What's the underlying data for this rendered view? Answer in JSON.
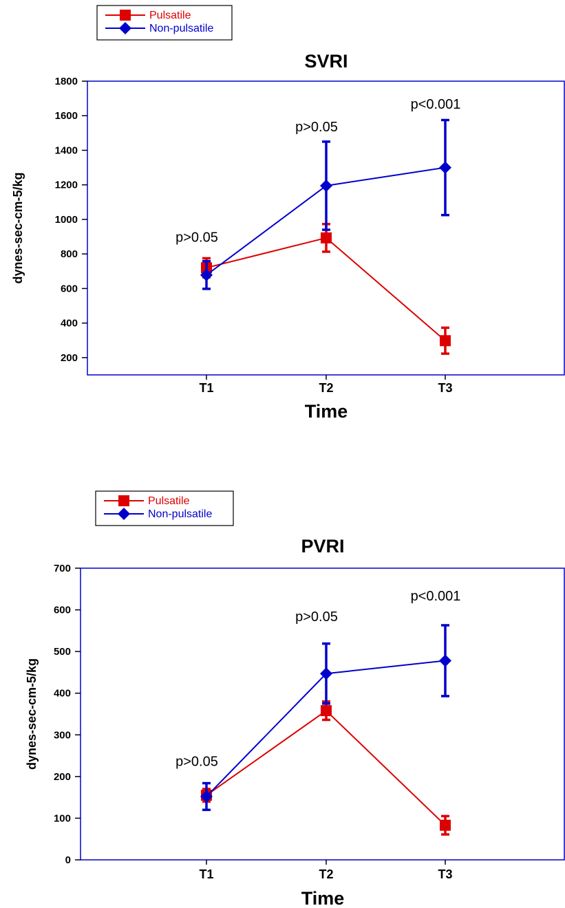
{
  "colors": {
    "pulsatile": "#dd0000",
    "non_pulsatile": "#0000cc",
    "frame": "#0000cc"
  },
  "chart_data": [
    {
      "type": "line",
      "title": "SVRI",
      "xlabel": "Time",
      "ylabel": "dynes-sec-cm-5/kg",
      "categories": [
        "T1",
        "T2",
        "T3"
      ],
      "ylim": [
        100,
        1800
      ],
      "yticks": [
        200,
        400,
        600,
        800,
        1000,
        1200,
        1400,
        1600,
        1800
      ],
      "legend_position": "top-left",
      "series": [
        {
          "name": "Pulsatile",
          "marker": "square",
          "values": [
            720,
            893,
            298
          ],
          "errors": [
            55,
            80,
            75
          ]
        },
        {
          "name": "Non-pulsatile",
          "marker": "diamond",
          "values": [
            678,
            1195,
            1300
          ],
          "errors": [
            80,
            255,
            275
          ]
        }
      ],
      "annotations": [
        {
          "category": "T1",
          "value": 870,
          "text": "p>0.05"
        },
        {
          "category": "T2",
          "value": 1510,
          "text": "p>0.05"
        },
        {
          "category": "T3",
          "value": 1640,
          "text": "p<0.001"
        }
      ]
    },
    {
      "type": "line",
      "title": "PVRI",
      "xlabel": "Time",
      "ylabel": "dynes-sec-cm-5/kg",
      "categories": [
        "T1",
        "T2",
        "T3"
      ],
      "ylim": [
        0,
        700
      ],
      "yticks": [
        0,
        100,
        200,
        300,
        400,
        500,
        600,
        700
      ],
      "legend_position": "top-left",
      "series": [
        {
          "name": "Pulsatile",
          "marker": "square",
          "values": [
            155,
            358,
            83
          ],
          "errors": [
            15,
            22,
            22
          ]
        },
        {
          "name": "Non-pulsatile",
          "marker": "diamond",
          "values": [
            152,
            447,
            478
          ],
          "errors": [
            32,
            72,
            85
          ]
        }
      ],
      "annotations": [
        {
          "category": "T1",
          "value": 225,
          "text": "p>0.05"
        },
        {
          "category": "T2",
          "value": 573,
          "text": "p>0.05"
        },
        {
          "category": "T3",
          "value": 622,
          "text": "p<0.001"
        }
      ]
    }
  ]
}
